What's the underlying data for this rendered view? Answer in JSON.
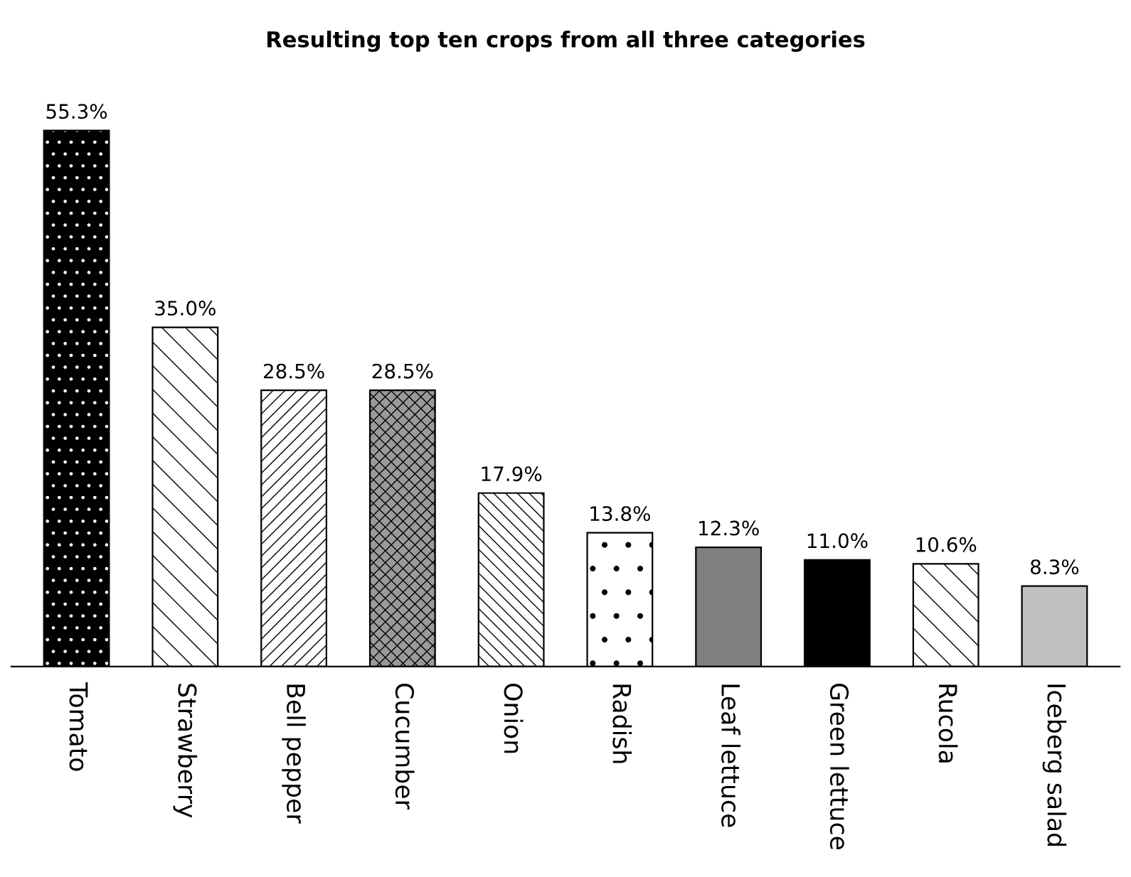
{
  "chart_data": {
    "type": "bar",
    "title": "Resulting top ten crops from all three categories",
    "categories": [
      "Tomato",
      "Strawberry",
      "Bell pepper",
      "Cucumber",
      "Onion",
      "Radish",
      "Leaf lettuce",
      "Green lettuce",
      "Rucola",
      "Iceberg salad"
    ],
    "values": [
      55.3,
      35.0,
      28.5,
      28.5,
      17.9,
      13.8,
      12.3,
      11.0,
      10.6,
      8.3
    ],
    "value_labels": [
      "55.3%",
      "35.0%",
      "28.5%",
      "28.5%",
      "17.9%",
      "13.8%",
      "12.3%",
      "11.0%",
      "10.6%",
      "8.3%"
    ],
    "colors": [
      "#000000",
      "#ffffff",
      "#ffffff",
      "#9a9a9a",
      "#ffffff",
      "#ffffff",
      "#808080",
      "#000000",
      "#ffffff",
      "#c0c0c0"
    ],
    "grid": false,
    "legend": false
  }
}
